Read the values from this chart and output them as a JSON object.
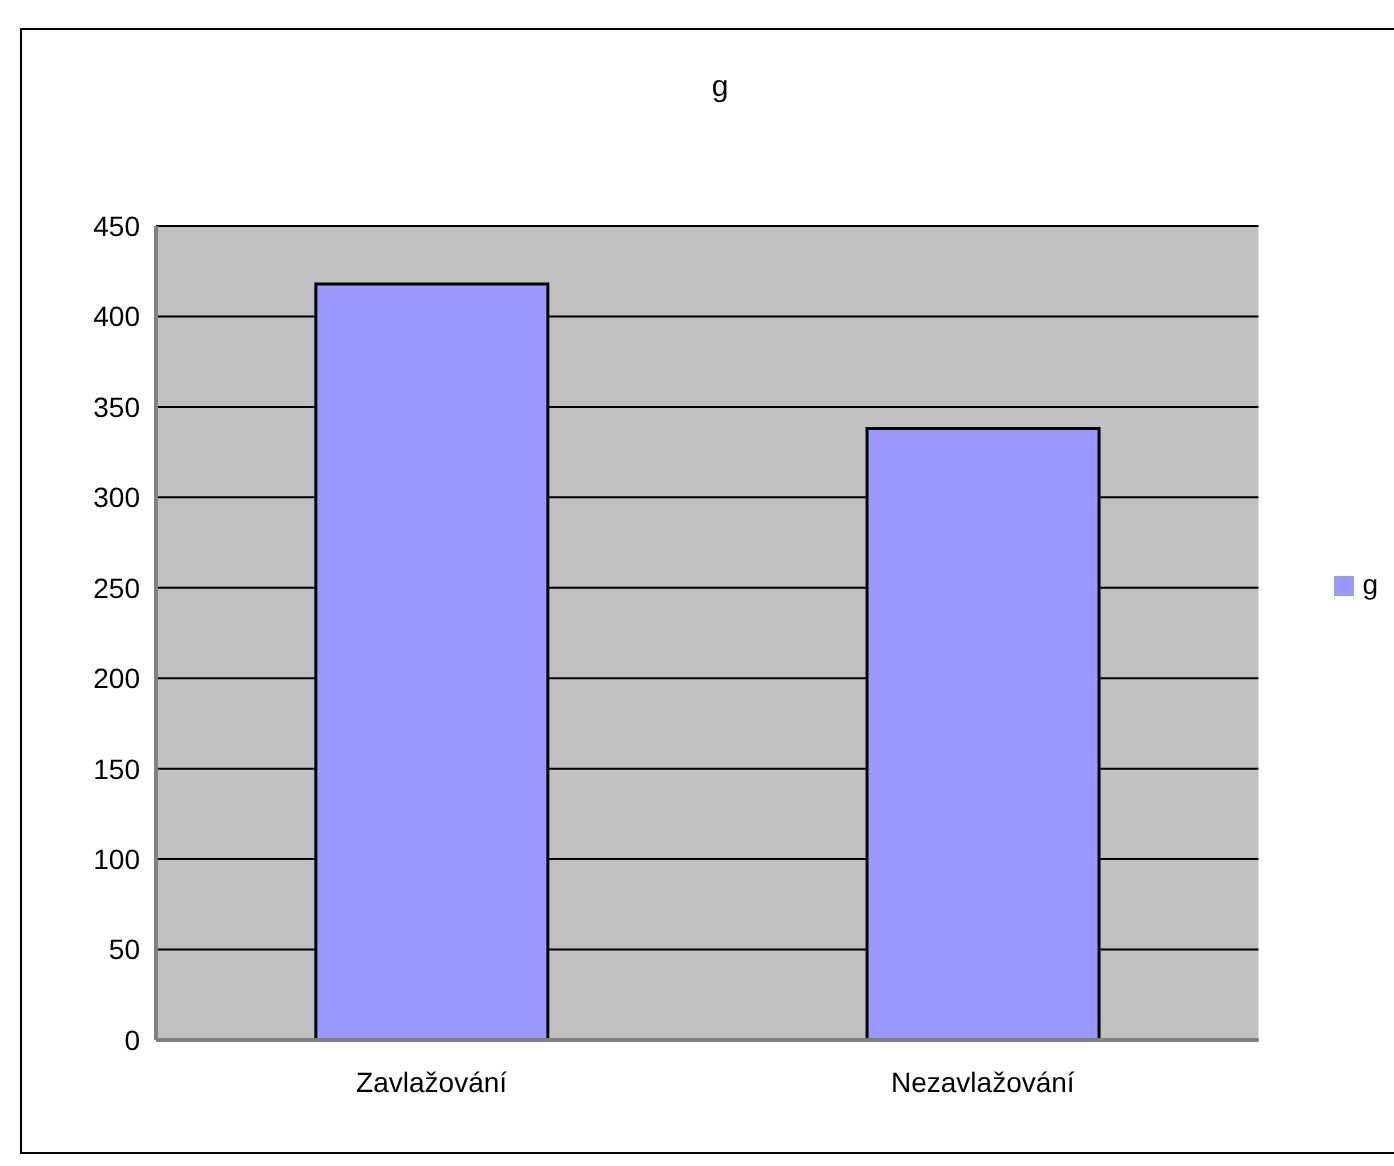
{
  "chart_data": {
    "type": "bar",
    "title": "g",
    "categories": [
      "Zavlažování",
      "Nezavlažování"
    ],
    "series": [
      {
        "name": "g",
        "color": "#9999ff",
        "values": [
          418,
          338
        ]
      }
    ],
    "ylim": [
      0,
      450
    ],
    "yticks": [
      0,
      50,
      100,
      150,
      200,
      250,
      300,
      350,
      400,
      450
    ],
    "grid": "y",
    "legend": "right"
  }
}
